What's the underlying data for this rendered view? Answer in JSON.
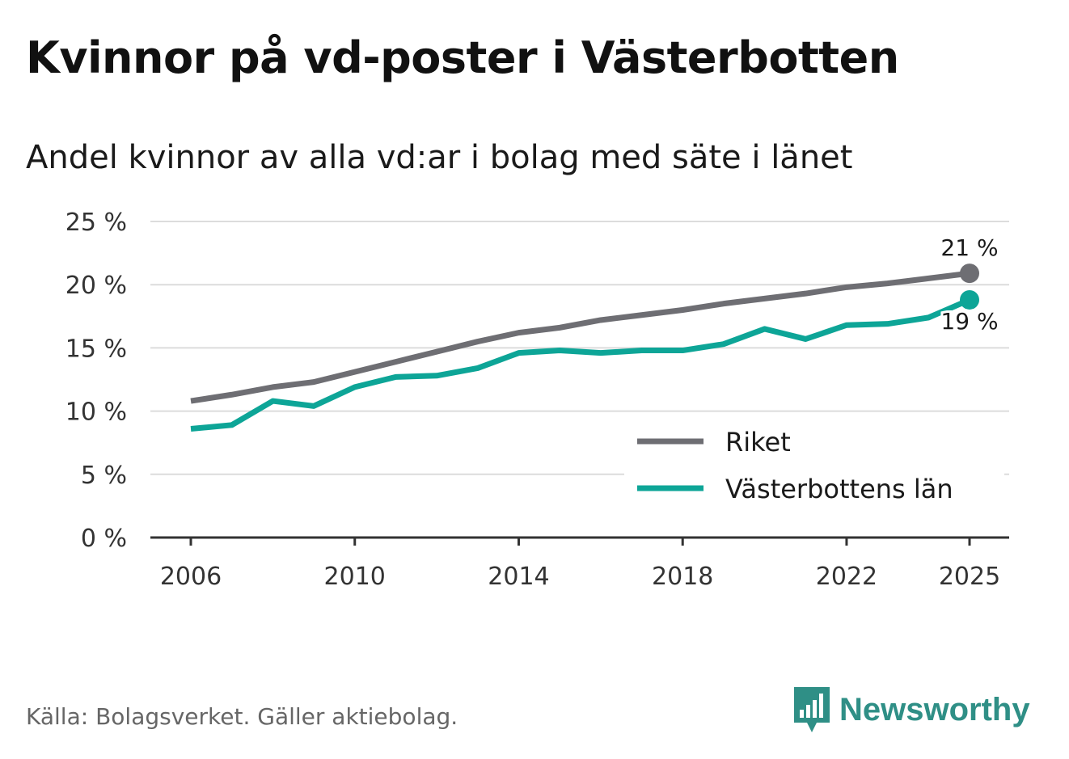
{
  "title": "Kvinnor på vd-poster i Västerbotten",
  "subtitle": "Andel kvinnor av alla vd:ar i bolag med säte i länet",
  "source": "Källa: Bolagsverket. Gäller aktiebolag.",
  "logo": {
    "text": "Newsworthy",
    "icon": "bar-chart-speech-bubble-icon",
    "color": "#2f8f86"
  },
  "chart_data": {
    "type": "line",
    "title": "Kvinnor på vd-poster i Västerbotten",
    "subtitle": "Andel kvinnor av alla vd:ar i bolag med säte i länet",
    "xlabel": "",
    "ylabel": "",
    "x": [
      2006,
      2007,
      2008,
      2009,
      2010,
      2011,
      2012,
      2013,
      2014,
      2015,
      2016,
      2017,
      2018,
      2019,
      2020,
      2021,
      2022,
      2023,
      2024,
      2025
    ],
    "x_ticks": [
      "2006",
      "2010",
      "2014",
      "2018",
      "2022",
      "2025"
    ],
    "y_ticks": [
      "0 %",
      "5 %",
      "10 %",
      "15 %",
      "20 %",
      "25 %"
    ],
    "ylim": [
      0,
      25
    ],
    "grid": true,
    "legend_position": "bottom-right",
    "series": [
      {
        "name": "Riket",
        "color": "#6e6e73",
        "values": [
          10.8,
          11.3,
          11.9,
          12.3,
          13.1,
          13.9,
          14.7,
          15.5,
          16.2,
          16.6,
          17.2,
          17.6,
          18.0,
          18.5,
          18.9,
          19.3,
          19.8,
          20.1,
          20.5,
          20.9
        ],
        "end_label": "21 %"
      },
      {
        "name": "Västerbottens län",
        "color": "#0da597",
        "values": [
          8.6,
          8.9,
          10.8,
          10.4,
          11.9,
          12.7,
          12.8,
          13.4,
          14.6,
          14.8,
          14.6,
          14.8,
          14.8,
          15.3,
          16.5,
          15.7,
          16.8,
          16.9,
          17.4,
          18.8
        ],
        "end_label": "19 %"
      }
    ]
  }
}
